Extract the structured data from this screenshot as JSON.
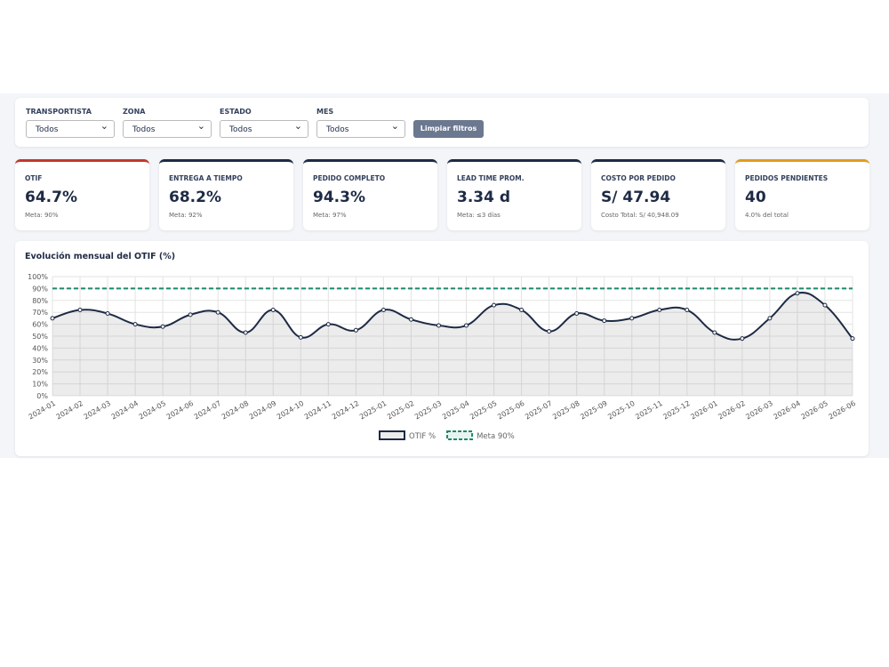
{
  "filters": [
    {
      "label": "TRANSPORTISTA",
      "value": "Todos"
    },
    {
      "label": "ZONA",
      "value": "Todos"
    },
    {
      "label": "ESTADO",
      "value": "Todos"
    },
    {
      "label": "MES",
      "value": "Todos"
    }
  ],
  "clear_button": "Limpiar filtros",
  "kpis": [
    {
      "label": "OTIF",
      "value": "64.7%",
      "note": "Meta: 90%",
      "accent": "#c0392b"
    },
    {
      "label": "ENTREGA A TIEMPO",
      "value": "68.2%",
      "note": "Meta: 92%",
      "accent": "#1e2a44"
    },
    {
      "label": "PEDIDO COMPLETO",
      "value": "94.3%",
      "note": "Meta: 97%",
      "accent": "#1e2a44"
    },
    {
      "label": "LEAD TIME PROM.",
      "value": "3.34 d",
      "note": "Meta: ≤3 días",
      "accent": "#1e2a44"
    },
    {
      "label": "COSTO POR PEDIDO",
      "value": "S/ 47.94",
      "note": "Costo Total: S/ 40,948.09",
      "accent": "#1e2a44"
    },
    {
      "label": "PEDIDOS PENDIENTES",
      "value": "40",
      "note": "4.0% del total",
      "accent": "#e39b1b"
    }
  ],
  "chart_data": {
    "type": "line",
    "title": "Evolución mensual del OTIF (%)",
    "categories": [
      "2024-01",
      "2024-02",
      "2024-03",
      "2024-04",
      "2024-05",
      "2024-06",
      "2024-07",
      "2024-08",
      "2024-09",
      "2024-10",
      "2024-11",
      "2024-12",
      "2025-01",
      "2025-02",
      "2025-03",
      "2025-04",
      "2025-05",
      "2025-06",
      "2025-07",
      "2025-08",
      "2025-09",
      "2025-10",
      "2025-11",
      "2025-12",
      "2026-01",
      "2026-02",
      "2026-03",
      "2026-04",
      "2026-05",
      "2026-06"
    ],
    "series": [
      {
        "name": "OTIF %",
        "color": "#1e2a44",
        "area": true,
        "values": [
          65,
          72,
          69,
          60,
          58,
          68,
          70,
          53,
          72,
          49,
          60,
          55,
          72,
          64,
          59,
          59,
          76,
          72,
          54,
          69,
          63,
          65,
          72,
          72,
          53,
          48,
          65,
          86,
          76,
          48
        ]
      },
      {
        "name": "Meta 90%",
        "color": "#1a8a6a",
        "dashed": true,
        "values": [
          90,
          90,
          90,
          90,
          90,
          90,
          90,
          90,
          90,
          90,
          90,
          90,
          90,
          90,
          90,
          90,
          90,
          90,
          90,
          90,
          90,
          90,
          90,
          90,
          90,
          90,
          90,
          90,
          90,
          90
        ]
      }
    ],
    "ylim": [
      0,
      100
    ],
    "yticks": [
      {
        "value": 0,
        "label": "0%"
      },
      {
        "value": 10,
        "label": "10%"
      },
      {
        "value": 20,
        "label": "20%"
      },
      {
        "value": 30,
        "label": "30%"
      },
      {
        "value": 40,
        "label": "40%"
      },
      {
        "value": 50,
        "label": "50%"
      },
      {
        "value": 60,
        "label": "60%"
      },
      {
        "value": 70,
        "label": "70%"
      },
      {
        "value": 80,
        "label": "80%"
      },
      {
        "value": 90,
        "label": "90%"
      },
      {
        "value": 100,
        "label": "100%"
      }
    ],
    "grid": true
  }
}
